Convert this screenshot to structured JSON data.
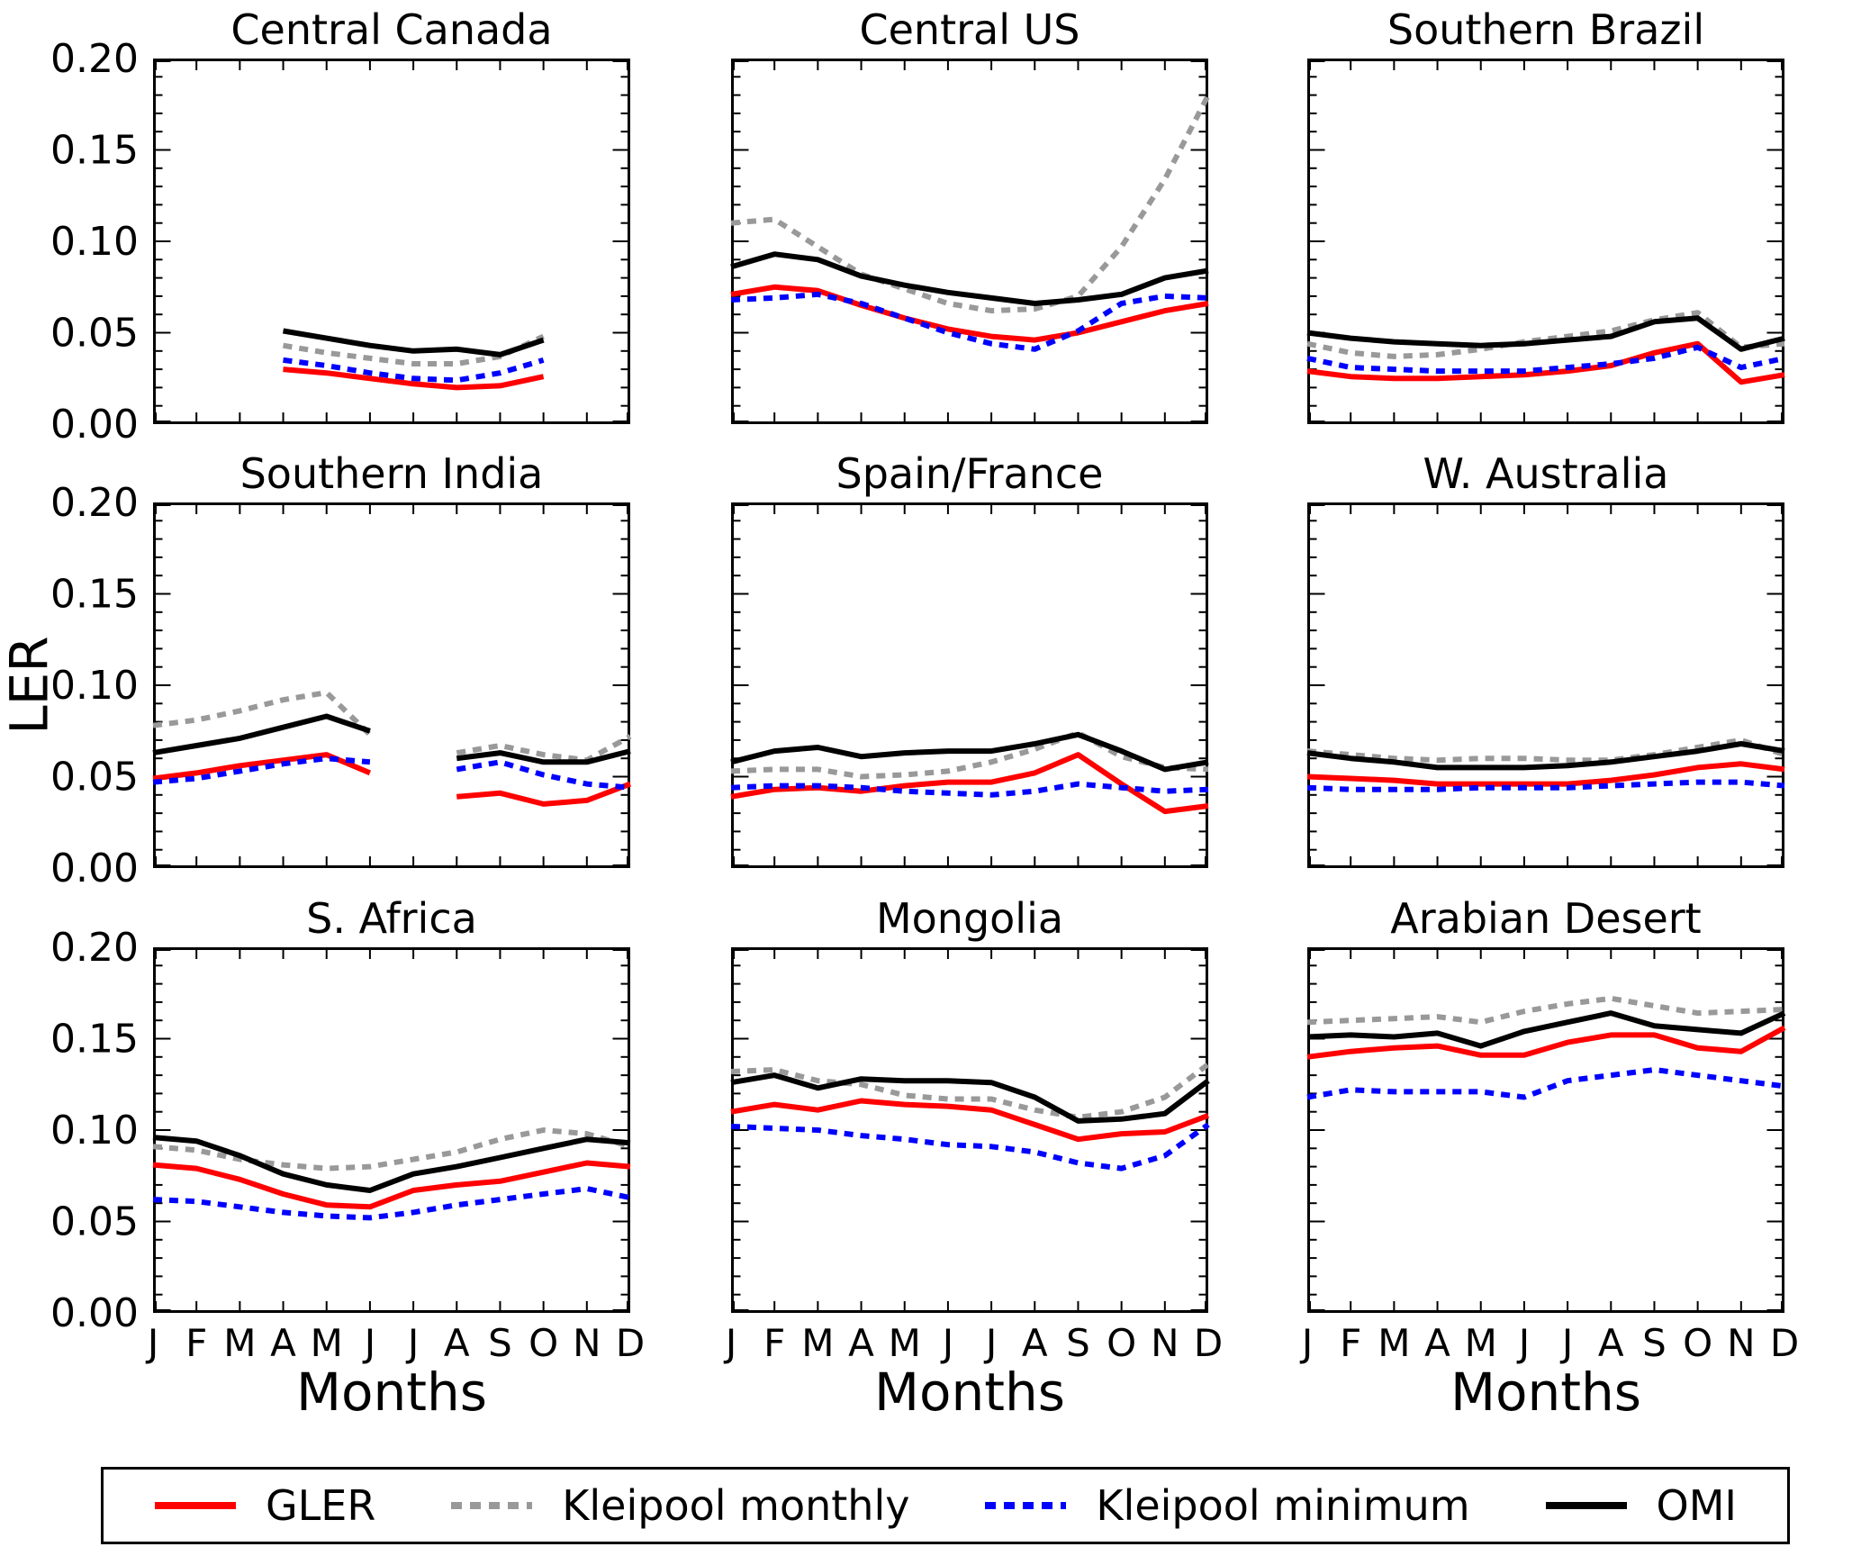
{
  "figure": {
    "ylabel": "LER",
    "xlabel": "Months",
    "background": "#ffffff",
    "ylim": [
      0.0,
      0.2
    ],
    "ytick_step_minor": 0.01,
    "ytick_step_major": 0.05,
    "yticks": [
      "0.20",
      "0.15",
      "0.10",
      "0.05",
      "0.00"
    ],
    "month_labels": [
      "J",
      "F",
      "M",
      "A",
      "M",
      "J",
      "J",
      "A",
      "S",
      "O",
      "N",
      "D"
    ],
    "frame_color": "#000000"
  },
  "legend": {
    "items": [
      {
        "label": "GLER",
        "color": "#ff0000",
        "dash": "solid"
      },
      {
        "label": "Kleipool monthly",
        "color": "#999999",
        "dash": "dashed"
      },
      {
        "label": "Kleipool minimum",
        "color": "#0000ff",
        "dash": "dashed"
      },
      {
        "label": "OMI",
        "color": "#000000",
        "dash": "solid"
      }
    ]
  },
  "chart_data": [
    {
      "type": "line",
      "title": "Central Canada",
      "x_months": [
        1,
        2,
        3,
        4,
        5,
        6,
        7,
        8,
        9,
        10,
        11,
        12
      ],
      "ylim": [
        0.0,
        0.2
      ],
      "series": {
        "GLER": [
          null,
          null,
          null,
          0.03,
          0.028,
          0.025,
          0.022,
          0.02,
          0.021,
          0.026,
          null,
          null
        ],
        "Kleipool monthly": [
          null,
          null,
          null,
          0.043,
          0.039,
          0.036,
          0.033,
          0.033,
          0.037,
          0.048,
          null,
          null
        ],
        "Kleipool minimum": [
          null,
          null,
          null,
          0.035,
          0.032,
          0.028,
          0.025,
          0.024,
          0.028,
          0.035,
          null,
          null
        ],
        "OMI": [
          null,
          null,
          null,
          0.051,
          0.047,
          0.043,
          0.04,
          0.041,
          0.038,
          0.046,
          null,
          null
        ]
      }
    },
    {
      "type": "line",
      "title": "Central US",
      "x_months": [
        1,
        2,
        3,
        4,
        5,
        6,
        7,
        8,
        9,
        10,
        11,
        12
      ],
      "ylim": [
        0.0,
        0.2
      ],
      "series": {
        "GLER": [
          0.071,
          0.075,
          0.073,
          0.065,
          0.058,
          0.052,
          0.048,
          0.046,
          0.05,
          0.056,
          0.062,
          0.066
        ],
        "Kleipool monthly": [
          0.11,
          0.112,
          0.097,
          0.082,
          0.074,
          0.066,
          0.062,
          0.063,
          0.07,
          0.097,
          0.134,
          0.18
        ],
        "Kleipool minimum": [
          0.068,
          0.069,
          0.071,
          0.066,
          0.058,
          0.05,
          0.044,
          0.041,
          0.051,
          0.066,
          0.07,
          0.069
        ],
        "OMI": [
          0.086,
          0.093,
          0.09,
          0.081,
          0.076,
          0.072,
          0.069,
          0.066,
          0.068,
          0.071,
          0.08,
          0.084
        ]
      }
    },
    {
      "type": "line",
      "title": "Southern Brazil",
      "x_months": [
        1,
        2,
        3,
        4,
        5,
        6,
        7,
        8,
        9,
        10,
        11,
        12
      ],
      "ylim": [
        0.0,
        0.2
      ],
      "series": {
        "GLER": [
          0.029,
          0.026,
          0.025,
          0.025,
          0.026,
          0.027,
          0.029,
          0.032,
          0.039,
          0.044,
          0.023,
          0.027
        ],
        "Kleipool monthly": [
          0.044,
          0.039,
          0.037,
          0.038,
          0.041,
          0.045,
          0.048,
          0.051,
          0.057,
          0.061,
          0.042,
          0.044
        ],
        "Kleipool minimum": [
          0.036,
          0.031,
          0.03,
          0.029,
          0.029,
          0.029,
          0.031,
          0.033,
          0.036,
          0.042,
          0.031,
          0.036
        ],
        "OMI": [
          0.05,
          0.047,
          0.045,
          0.044,
          0.043,
          0.044,
          0.046,
          0.048,
          0.056,
          0.058,
          0.041,
          0.047
        ]
      }
    },
    {
      "type": "line",
      "title": "Southern India",
      "x_months": [
        1,
        2,
        3,
        4,
        5,
        6,
        7,
        8,
        9,
        10,
        11,
        12
      ],
      "ylim": [
        0.0,
        0.2
      ],
      "series": {
        "GLER": [
          0.049,
          0.052,
          0.056,
          0.059,
          0.062,
          0.052,
          null,
          0.039,
          0.041,
          0.035,
          0.037,
          0.046
        ],
        "Kleipool monthly": [
          0.078,
          0.081,
          0.086,
          0.092,
          0.096,
          0.073,
          null,
          0.063,
          0.067,
          0.062,
          0.059,
          0.072
        ],
        "Kleipool minimum": [
          0.047,
          0.049,
          0.053,
          0.057,
          0.06,
          0.058,
          null,
          0.054,
          0.058,
          0.051,
          0.046,
          0.044
        ],
        "OMI": [
          0.063,
          0.067,
          0.071,
          0.077,
          0.083,
          0.075,
          null,
          0.06,
          0.063,
          0.058,
          0.058,
          0.064
        ]
      }
    },
    {
      "type": "line",
      "title": "Spain/France",
      "x_months": [
        1,
        2,
        3,
        4,
        5,
        6,
        7,
        8,
        9,
        10,
        11,
        12
      ],
      "ylim": [
        0.0,
        0.2
      ],
      "series": {
        "GLER": [
          0.039,
          0.043,
          0.044,
          0.042,
          0.045,
          0.047,
          0.047,
          0.052,
          0.062,
          0.046,
          0.031,
          0.034
        ],
        "Kleipool monthly": [
          0.053,
          0.054,
          0.054,
          0.05,
          0.051,
          0.053,
          0.058,
          0.065,
          0.074,
          0.061,
          0.055,
          0.054
        ],
        "Kleipool minimum": [
          0.044,
          0.045,
          0.045,
          0.044,
          0.042,
          0.041,
          0.04,
          0.042,
          0.046,
          0.044,
          0.042,
          0.043
        ],
        "OMI": [
          0.058,
          0.064,
          0.066,
          0.061,
          0.063,
          0.064,
          0.064,
          0.068,
          0.073,
          0.064,
          0.054,
          0.058
        ]
      }
    },
    {
      "type": "line",
      "title": "W. Australia",
      "x_months": [
        1,
        2,
        3,
        4,
        5,
        6,
        7,
        8,
        9,
        10,
        11,
        12
      ],
      "ylim": [
        0.0,
        0.2
      ],
      "series": {
        "GLER": [
          0.05,
          0.049,
          0.048,
          0.046,
          0.046,
          0.046,
          0.046,
          0.048,
          0.051,
          0.055,
          0.057,
          0.054
        ],
        "Kleipool monthly": [
          0.064,
          0.062,
          0.06,
          0.059,
          0.06,
          0.06,
          0.059,
          0.059,
          0.062,
          0.066,
          0.07,
          0.062
        ],
        "Kleipool minimum": [
          0.044,
          0.043,
          0.043,
          0.043,
          0.044,
          0.044,
          0.044,
          0.045,
          0.046,
          0.047,
          0.047,
          0.045
        ],
        "OMI": [
          0.063,
          0.06,
          0.058,
          0.055,
          0.055,
          0.055,
          0.056,
          0.058,
          0.061,
          0.064,
          0.068,
          0.064
        ]
      }
    },
    {
      "type": "line",
      "title": "S. Africa",
      "x_months": [
        1,
        2,
        3,
        4,
        5,
        6,
        7,
        8,
        9,
        10,
        11,
        12
      ],
      "ylim": [
        0.0,
        0.2
      ],
      "series": {
        "GLER": [
          0.081,
          0.079,
          0.073,
          0.065,
          0.059,
          0.058,
          0.067,
          0.07,
          0.072,
          0.077,
          0.082,
          0.08
        ],
        "Kleipool monthly": [
          0.091,
          0.089,
          0.084,
          0.081,
          0.079,
          0.08,
          0.084,
          0.088,
          0.095,
          0.1,
          0.098,
          0.091
        ],
        "Kleipool minimum": [
          0.062,
          0.061,
          0.058,
          0.055,
          0.053,
          0.052,
          0.055,
          0.059,
          0.062,
          0.065,
          0.068,
          0.063
        ],
        "OMI": [
          0.096,
          0.094,
          0.086,
          0.076,
          0.07,
          0.067,
          0.076,
          0.08,
          0.085,
          0.09,
          0.095,
          0.093
        ]
      }
    },
    {
      "type": "line",
      "title": "Mongolia",
      "x_months": [
        1,
        2,
        3,
        4,
        5,
        6,
        7,
        8,
        9,
        10,
        11,
        12
      ],
      "ylim": [
        0.0,
        0.2
      ],
      "series": {
        "GLER": [
          0.11,
          0.114,
          0.111,
          0.116,
          0.114,
          0.113,
          0.111,
          0.103,
          0.095,
          0.098,
          0.099,
          0.108
        ],
        "Kleipool monthly": [
          0.132,
          0.133,
          0.127,
          0.125,
          0.119,
          0.117,
          0.117,
          0.111,
          0.107,
          0.11,
          0.118,
          0.136
        ],
        "Kleipool minimum": [
          0.102,
          0.101,
          0.1,
          0.097,
          0.095,
          0.092,
          0.091,
          0.088,
          0.082,
          0.079,
          0.086,
          0.103
        ],
        "OMI": [
          0.126,
          0.13,
          0.123,
          0.128,
          0.127,
          0.127,
          0.126,
          0.118,
          0.105,
          0.106,
          0.109,
          0.127
        ]
      }
    },
    {
      "type": "line",
      "title": "Arabian Desert",
      "x_months": [
        1,
        2,
        3,
        4,
        5,
        6,
        7,
        8,
        9,
        10,
        11,
        12
      ],
      "ylim": [
        0.0,
        0.2
      ],
      "series": {
        "GLER": [
          0.14,
          0.143,
          0.145,
          0.146,
          0.141,
          0.141,
          0.148,
          0.152,
          0.152,
          0.145,
          0.143,
          0.156
        ],
        "Kleipool monthly": [
          0.159,
          0.16,
          0.161,
          0.162,
          0.159,
          0.165,
          0.169,
          0.172,
          0.168,
          0.164,
          0.165,
          0.166
        ],
        "Kleipool minimum": [
          0.118,
          0.122,
          0.121,
          0.121,
          0.121,
          0.118,
          0.127,
          0.13,
          0.133,
          0.13,
          0.127,
          0.124
        ],
        "OMI": [
          0.151,
          0.152,
          0.151,
          0.153,
          0.146,
          0.154,
          0.159,
          0.164,
          0.157,
          0.155,
          0.153,
          0.164
        ]
      }
    }
  ]
}
